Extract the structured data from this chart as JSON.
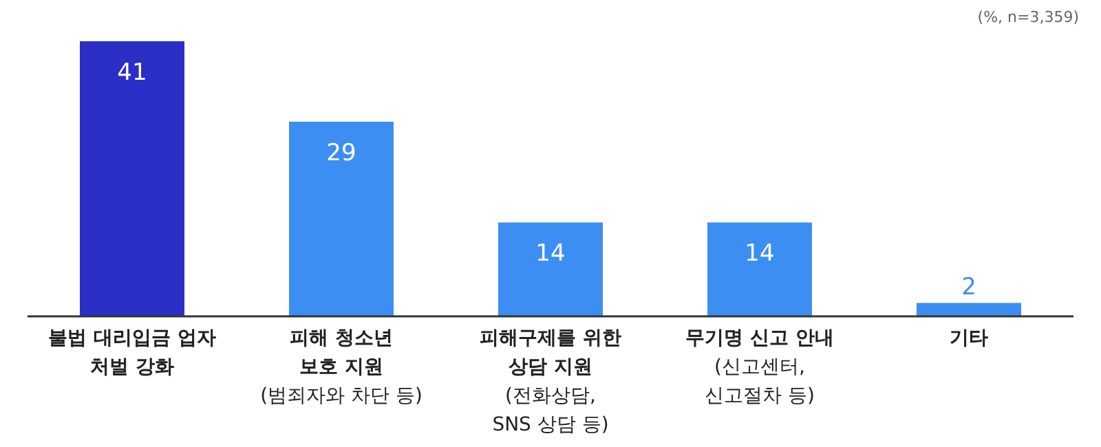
{
  "chart_data": {
    "type": "bar",
    "categories": [
      "불법 대리입금 업자\n처벌 강화",
      "피해 청소년\n보호 지원\n(범죄자와 차단 등)",
      "피해구제를 위한\n상담 지원\n(전화상담,\nSNS 상담 등)",
      "무기명 신고 안내\n(신고센터,\n신고절차 등)",
      "기타"
    ],
    "values": [
      41,
      29,
      14,
      14,
      2
    ],
    "colors": [
      "#2b2fc6",
      "#3d8ef2",
      "#3d8ef2",
      "#3d8ef2",
      "#3d8ef2"
    ],
    "data_labels": true,
    "grid": false,
    "legend": false,
    "annotations": [
      "(%, n=3,359)"
    ]
  }
}
